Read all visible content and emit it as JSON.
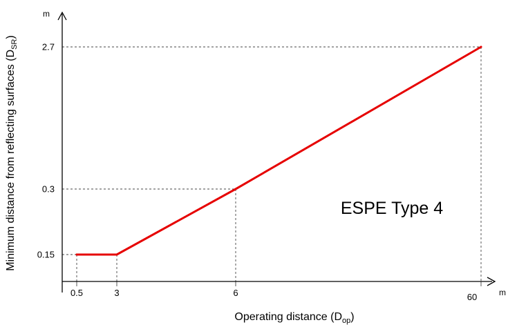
{
  "chart_data": {
    "type": "line",
    "x_unit": "m",
    "y_unit": "m",
    "xlabel": {
      "text": "Operating distance (D",
      "sub": "op",
      "end": ")"
    },
    "ylabel": {
      "text": "Minimum distance from reflecting surfaces (D",
      "sub": "SR",
      "end": ")"
    },
    "x_ticks": [
      "0.5",
      "3",
      "6",
      "60"
    ],
    "y_ticks": [
      "0.15",
      "0.3",
      "2.7"
    ],
    "series": [
      {
        "color": "#e60000",
        "points": [
          {
            "x": 0.5,
            "y": 0.15
          },
          {
            "x": 3,
            "y": 0.15
          },
          {
            "x": 6,
            "y": 0.3
          },
          {
            "x": 60,
            "y": 2.7
          }
        ]
      }
    ],
    "reference_points": [
      {
        "x": 0.5,
        "y": 0.15
      },
      {
        "x": 3,
        "y": 0.15
      },
      {
        "x": 6,
        "y": 0.3
      },
      {
        "x": 60,
        "y": 2.7
      }
    ],
    "annotations": [
      {
        "text": "ESPE Type 4"
      }
    ],
    "grid": false,
    "legend": "none",
    "colors": {
      "line": "#e60000",
      "axis": "#000000",
      "guide": "#444444"
    }
  }
}
